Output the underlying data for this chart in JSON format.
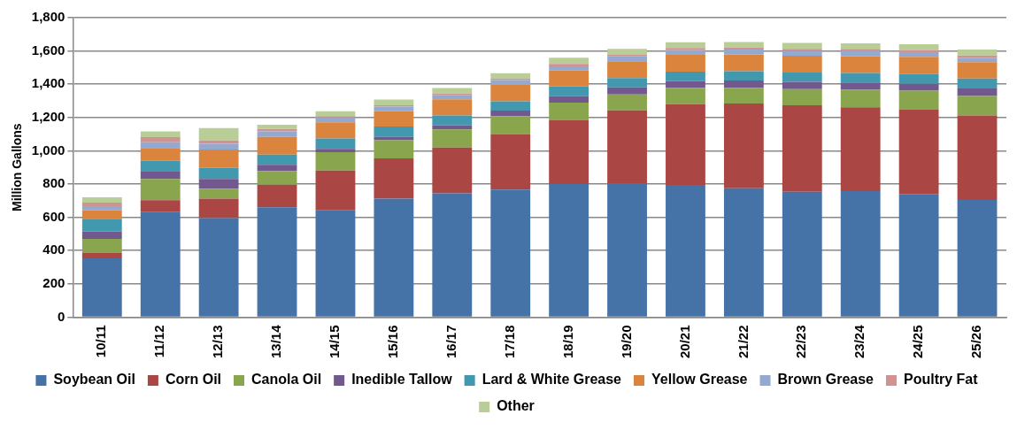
{
  "chart_data": {
    "type": "bar",
    "stacked": true,
    "ylabel": "Million Gallons",
    "categories": [
      "10/11",
      "11/12",
      "12/13",
      "13/14",
      "14/15",
      "15/16",
      "16/17",
      "17/18",
      "18/19",
      "19/20",
      "20/21",
      "21/22",
      "22/23",
      "23/24",
      "24/25",
      "25/26"
    ],
    "series": [
      {
        "name": "Soybean Oil",
        "color": "#4572a7",
        "values": [
          353,
          632,
          596,
          661,
          642,
          713,
          745,
          767,
          800,
          802,
          795,
          775,
          754,
          758,
          740,
          704
        ]
      },
      {
        "name": "Corn Oil",
        "color": "#aa4643",
        "values": [
          32,
          71,
          117,
          135,
          239,
          242,
          275,
          334,
          386,
          441,
          485,
          509,
          520,
          504,
          510,
          509
        ]
      },
      {
        "name": "Canola Oil",
        "color": "#89a54e",
        "values": [
          85,
          128,
          59,
          83,
          110,
          108,
          108,
          108,
          103,
          95,
          97,
          95,
          97,
          105,
          111,
          116
        ]
      },
      {
        "name": "Inedible Tallow",
        "color": "#71588f",
        "values": [
          45,
          48,
          59,
          37,
          20,
          20,
          26,
          32,
          39,
          43,
          43,
          43,
          43,
          43,
          42,
          46
        ]
      },
      {
        "name": "Lard & White Grease",
        "color": "#4198af",
        "values": [
          77,
          61,
          67,
          61,
          63,
          63,
          59,
          57,
          59,
          56,
          56,
          56,
          56,
          58,
          59,
          59
        ]
      },
      {
        "name": "Yellow Grease",
        "color": "#db843d",
        "values": [
          50,
          77,
          109,
          107,
          97,
          93,
          97,
          99,
          95,
          101,
          101,
          101,
          101,
          101,
          103,
          99
        ]
      },
      {
        "name": "Brown Grease",
        "color": "#93a9cf",
        "values": [
          25,
          35,
          35,
          33,
          29,
          26,
          26,
          28,
          26,
          29,
          27,
          29,
          29,
          29,
          27,
          26
        ]
      },
      {
        "name": "Poultry Fat",
        "color": "#d19392",
        "values": [
          22,
          30,
          20,
          14,
          8,
          8,
          8,
          10,
          14,
          10,
          14,
          14,
          12,
          14,
          14,
          14
        ]
      },
      {
        "name": "Other",
        "color": "#b9cd96",
        "values": [
          32,
          35,
          75,
          26,
          30,
          35,
          33,
          31,
          37,
          36,
          34,
          32,
          36,
          34,
          34,
          35
        ]
      }
    ],
    "ylim": [
      0,
      1800
    ],
    "yticks": [
      0,
      {
        "value": 200,
        "label": "200"
      },
      {
        "value": 400,
        "label": "400"
      },
      {
        "value": 600,
        "label": "600"
      },
      {
        "value": 800,
        "label": "800"
      },
      {
        "value": 1000,
        "label": "1,000"
      },
      {
        "value": 1200,
        "label": "1,200"
      },
      {
        "value": 1400,
        "label": "1,400"
      },
      {
        "value": 1600,
        "label": "1,600"
      },
      {
        "value": 1800,
        "label": "1,800"
      }
    ],
    "grid": "y",
    "legend": "bottom"
  }
}
